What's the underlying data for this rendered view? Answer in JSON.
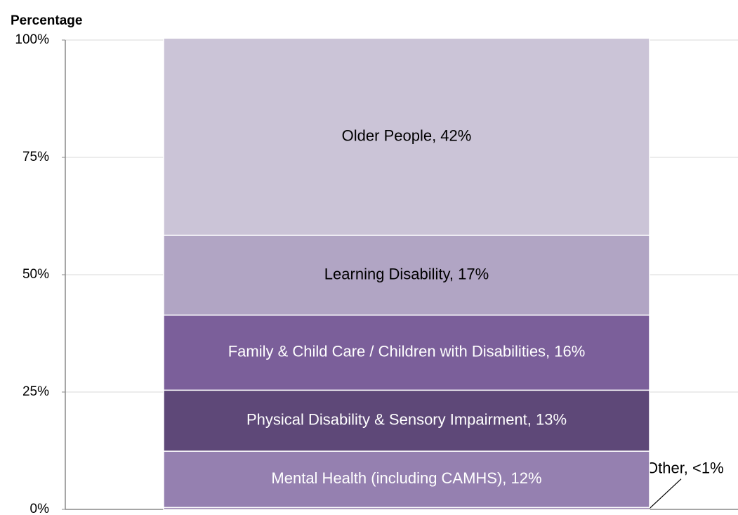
{
  "chart_data": {
    "type": "stacked_bar",
    "y_axis_label": "Percentage",
    "ylim": [
      0,
      100
    ],
    "yticks": [
      {
        "value": 0,
        "label": "0%"
      },
      {
        "value": 25,
        "label": "25%"
      },
      {
        "value": 50,
        "label": "50%"
      },
      {
        "value": 75,
        "label": "75%"
      },
      {
        "value": 100,
        "label": "100%"
      }
    ],
    "grid": true,
    "series": [
      {
        "color": "#8a70a5",
        "values": [
          0.4
        ],
        "value_labels": [
          "Other, <1%"
        ]
      },
      {
        "color": "#9580b0",
        "values": [
          12
        ],
        "value_labels": [
          "Mental Health (including CAMHS), 12%"
        ]
      },
      {
        "color": "#5e4878",
        "values": [
          13
        ],
        "value_labels": [
          "Physical Disability & Sensory Impairment, 13%"
        ]
      },
      {
        "color": "#7b5f9a",
        "values": [
          16
        ],
        "value_labels": [
          "Family & Child Care / Children with Disabilities, 16%"
        ]
      },
      {
        "color": "#b1a5c4",
        "values": [
          17
        ],
        "value_labels": [
          "Learning Disability, 17%"
        ]
      },
      {
        "color": "#cbc4d7",
        "values": [
          42
        ],
        "value_labels": [
          "Older People, 42%"
        ]
      }
    ]
  }
}
